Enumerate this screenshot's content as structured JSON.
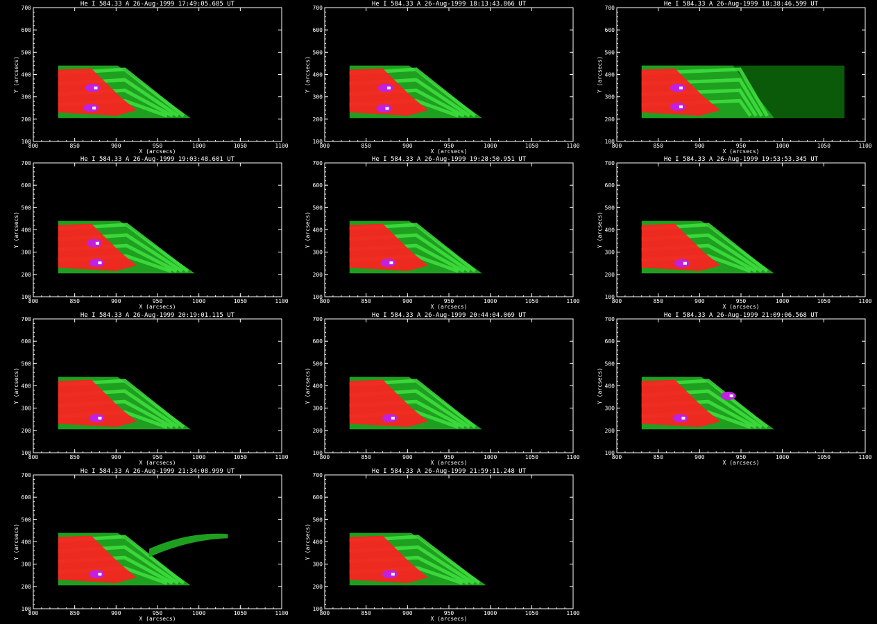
{
  "colors": {
    "background": "#000000",
    "axis": "#ffffff",
    "dim_green": "#0a5a0a",
    "mid_green": "#1f9f1f",
    "bright_green": "#3fe03f",
    "red": "#ff2020",
    "magenta": "#c020e0",
    "white": "#ffffff"
  },
  "chart_data": [
    {
      "type": "heatmap",
      "title": "He I 584.33 A 26-Aug-1999 17:49:05.685 UT",
      "xlabel": "X (arcsecs)",
      "ylabel": "Y (arcsecs)",
      "xlim": [
        800,
        1100
      ],
      "ylim": [
        100,
        700
      ],
      "x_ticks": [
        800,
        850,
        900,
        950,
        1000,
        1050,
        1100
      ],
      "y_ticks": [
        100,
        200,
        300,
        400,
        500,
        600,
        700
      ],
      "region": {
        "x_start": 830,
        "x_end": 990,
        "y_start": 205,
        "y_end": 440
      },
      "kernels": [
        {
          "x": 875,
          "y": 340
        },
        {
          "x": 873,
          "y": 250
        }
      ],
      "extension": "none"
    },
    {
      "type": "heatmap",
      "title": "He I 584.33 A 26-Aug-1999 18:13:43.866 UT",
      "xlabel": "X (arcsecs)",
      "ylabel": "Y (arcsecs)",
      "xlim": [
        800,
        1100
      ],
      "ylim": [
        100,
        700
      ],
      "x_ticks": [
        800,
        850,
        900,
        950,
        1000,
        1050,
        1100
      ],
      "y_ticks": [
        100,
        200,
        300,
        400,
        500,
        600,
        700
      ],
      "region": {
        "x_start": 830,
        "x_end": 990,
        "y_start": 205,
        "y_end": 440
      },
      "kernels": [
        {
          "x": 877,
          "y": 340
        },
        {
          "x": 875,
          "y": 248
        }
      ],
      "extension": "none"
    },
    {
      "type": "heatmap",
      "title": "He I 584.33 A 26-Aug-1999 18:38:46.599 UT",
      "xlabel": "X (arcsecs)",
      "ylabel": "Y (arcsecs)",
      "xlim": [
        800,
        1100
      ],
      "ylim": [
        100,
        700
      ],
      "x_ticks": [
        800,
        850,
        900,
        950,
        1000,
        1050,
        1100
      ],
      "y_ticks": [
        100,
        200,
        300,
        400,
        500,
        600,
        700
      ],
      "region": {
        "x_start": 830,
        "x_end": 1075,
        "y_start": 205,
        "y_end": 440
      },
      "kernels": [
        {
          "x": 877,
          "y": 340
        },
        {
          "x": 877,
          "y": 255
        }
      ],
      "extension": "box"
    },
    {
      "type": "heatmap",
      "title": "He I 584.33 A 26-Aug-1999 19:03:48.601 UT",
      "xlabel": "X (arcsecs)",
      "ylabel": "Y (arcsecs)",
      "xlim": [
        800,
        1100
      ],
      "ylim": [
        100,
        700
      ],
      "x_ticks": [
        800,
        850,
        900,
        950,
        1000,
        1050,
        1100
      ],
      "y_ticks": [
        100,
        200,
        300,
        400,
        500,
        600,
        700
      ],
      "region": {
        "x_start": 830,
        "x_end": 995,
        "y_start": 205,
        "y_end": 440
      },
      "kernels": [
        {
          "x": 877,
          "y": 340
        },
        {
          "x": 880,
          "y": 252
        }
      ],
      "extension": "none"
    },
    {
      "type": "heatmap",
      "title": "He I 584.33 A 26-Aug-1999 19:28:50.951 UT",
      "xlabel": "X (arcsecs)",
      "ylabel": "Y (arcsecs)",
      "xlim": [
        800,
        1100
      ],
      "ylim": [
        100,
        700
      ],
      "x_ticks": [
        800,
        850,
        900,
        950,
        1000,
        1050,
        1100
      ],
      "y_ticks": [
        100,
        200,
        300,
        400,
        500,
        600,
        700
      ],
      "region": {
        "x_start": 830,
        "x_end": 990,
        "y_start": 205,
        "y_end": 440
      },
      "kernels": [
        {
          "x": 880,
          "y": 252
        }
      ],
      "extension": "none"
    },
    {
      "type": "heatmap",
      "title": "He I 584.33 A 26-Aug-1999 19:53:53.345 UT",
      "xlabel": "X (arcsecs)",
      "ylabel": "Y (arcsecs)",
      "xlim": [
        800,
        1100
      ],
      "ylim": [
        100,
        700
      ],
      "x_ticks": [
        800,
        850,
        900,
        950,
        1000,
        1050,
        1100
      ],
      "y_ticks": [
        100,
        200,
        300,
        400,
        500,
        600,
        700
      ],
      "region": {
        "x_start": 830,
        "x_end": 990,
        "y_start": 205,
        "y_end": 440
      },
      "kernels": [
        {
          "x": 882,
          "y": 250
        }
      ],
      "extension": "none"
    },
    {
      "type": "heatmap",
      "title": "He I 584.33 A 26-Aug-1999 20:19:01.115 UT",
      "xlabel": "X (arcsecs)",
      "ylabel": "Y (arcsecs)",
      "xlim": [
        800,
        1100
      ],
      "ylim": [
        100,
        700
      ],
      "x_ticks": [
        800,
        850,
        900,
        950,
        1000,
        1050,
        1100
      ],
      "y_ticks": [
        100,
        200,
        300,
        400,
        500,
        600,
        700
      ],
      "region": {
        "x_start": 830,
        "x_end": 990,
        "y_start": 205,
        "y_end": 440
      },
      "kernels": [
        {
          "x": 880,
          "y": 255
        }
      ],
      "extension": "none"
    },
    {
      "type": "heatmap",
      "title": "He I 584.33 A 26-Aug-1999 20:44:04.069 UT",
      "xlabel": "X (arcsecs)",
      "ylabel": "Y (arcsecs)",
      "xlim": [
        800,
        1100
      ],
      "ylim": [
        100,
        700
      ],
      "x_ticks": [
        800,
        850,
        900,
        950,
        1000,
        1050,
        1100
      ],
      "y_ticks": [
        100,
        200,
        300,
        400,
        500,
        600,
        700
      ],
      "region": {
        "x_start": 830,
        "x_end": 990,
        "y_start": 205,
        "y_end": 440
      },
      "kernels": [
        {
          "x": 882,
          "y": 255
        }
      ],
      "extension": "none"
    },
    {
      "type": "heatmap",
      "title": "He I 584.33 A 26-Aug-1999 21:09:06.568 UT",
      "xlabel": "X (arcsecs)",
      "ylabel": "Y (arcsecs)",
      "xlim": [
        800,
        1100
      ],
      "ylim": [
        100,
        700
      ],
      "x_ticks": [
        800,
        850,
        900,
        950,
        1000,
        1050,
        1100
      ],
      "y_ticks": [
        100,
        200,
        300,
        400,
        500,
        600,
        700
      ],
      "region": {
        "x_start": 830,
        "x_end": 990,
        "y_start": 205,
        "y_end": 440
      },
      "kernels": [
        {
          "x": 938,
          "y": 355
        },
        {
          "x": 880,
          "y": 255
        }
      ],
      "extension": "none"
    },
    {
      "type": "heatmap",
      "title": "He I 584.33 A 26-Aug-1999 21:34:08.999 UT",
      "xlabel": "X (arcsecs)",
      "ylabel": "Y (arcsecs)",
      "xlim": [
        800,
        1100
      ],
      "ylim": [
        100,
        700
      ],
      "x_ticks": [
        800,
        850,
        900,
        950,
        1000,
        1050,
        1100
      ],
      "y_ticks": [
        100,
        200,
        300,
        400,
        500,
        600,
        700
      ],
      "region": {
        "x_start": 830,
        "x_end": 990,
        "y_start": 205,
        "y_end": 440
      },
      "kernels": [
        {
          "x": 880,
          "y": 255
        }
      ],
      "extension": "jet"
    },
    {
      "type": "heatmap",
      "title": "He I 584.33 A 26-Aug-1999 21:59:11.248 UT",
      "xlabel": "X (arcsecs)",
      "ylabel": "Y (arcsecs)",
      "xlim": [
        800,
        1100
      ],
      "ylim": [
        100,
        700
      ],
      "x_ticks": [
        800,
        850,
        900,
        950,
        1000,
        1050,
        1100
      ],
      "y_ticks": [
        100,
        200,
        300,
        400,
        500,
        600,
        700
      ],
      "region": {
        "x_start": 830,
        "x_end": 995,
        "y_start": 205,
        "y_end": 440
      },
      "kernels": [
        {
          "x": 882,
          "y": 255
        }
      ],
      "extension": "none"
    }
  ]
}
